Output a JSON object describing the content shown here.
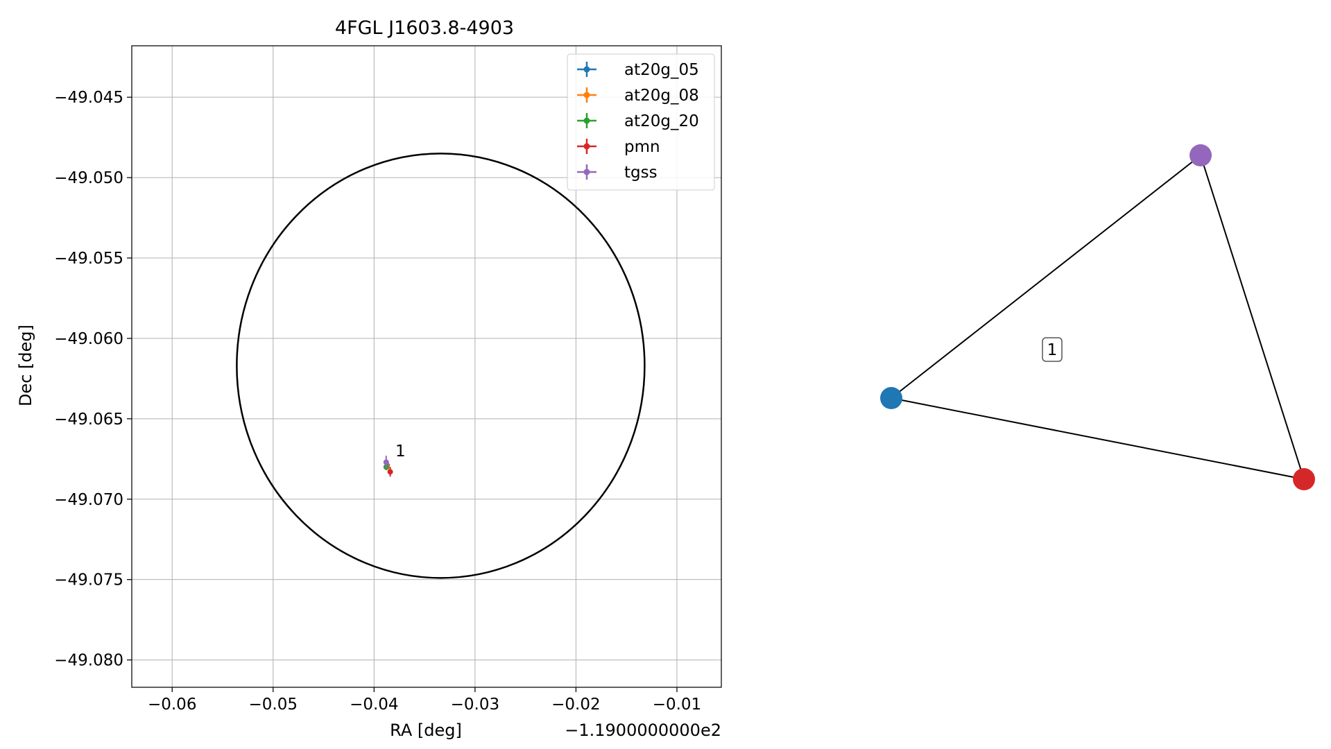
{
  "chart_data": [
    {
      "type": "scatter",
      "title": "4FGL J1603.8-4903",
      "xlabel": "RA [deg]",
      "ylabel": "Dec [deg]",
      "x_offset_label": "−1.1900000000e2",
      "xlim": [
        -0.064,
        -0.0056
      ],
      "ylim": [
        -49.0817,
        -49.0418
      ],
      "xticks": [
        -0.06,
        -0.05,
        -0.04,
        -0.03,
        -0.02,
        -0.01
      ],
      "xtick_labels": [
        "−0.06",
        "−0.05",
        "−0.04",
        "−0.03",
        "−0.02",
        "−0.01"
      ],
      "yticks": [
        -49.045,
        -49.05,
        -49.055,
        -49.06,
        -49.065,
        -49.07,
        -49.075,
        -49.08
      ],
      "ytick_labels": [
        "−49.045",
        "−49.050",
        "−49.055",
        "−49.060",
        "−49.065",
        "−49.070",
        "−49.075",
        "−49.080"
      ],
      "grid": true,
      "legend_position": "top-right",
      "ellipse": {
        "center": [
          -0.0334,
          -49.0617
        ],
        "half_width_ra": 0.0202,
        "half_height_dec": 0.0132,
        "color": "#000000"
      },
      "series": [
        {
          "name": "at20g_05",
          "color": "#1f77b4",
          "x": -0.0387,
          "y": -49.0679,
          "xerr": 0.00012,
          "yerr": 0.0001
        },
        {
          "name": "at20g_08",
          "color": "#ff7f0e",
          "x": -0.0387,
          "y": -49.068,
          "xerr": 0.00012,
          "yerr": 0.0001
        },
        {
          "name": "at20g_20",
          "color": "#2ca02c",
          "x": -0.0388,
          "y": -49.068,
          "xerr": 0.0002,
          "yerr": 0.0002
        },
        {
          "name": "pmn",
          "color": "#d62728",
          "x": -0.0384,
          "y": -49.0683,
          "xerr": 0.0002,
          "yerr": 0.0003
        },
        {
          "name": "tgss",
          "color": "#9467bd",
          "x": -0.0388,
          "y": -49.0677,
          "xerr": 0.0002,
          "yerr": 0.0004
        }
      ],
      "annotations": [
        {
          "text": "1",
          "x": -0.0381,
          "y": -49.0675
        }
      ]
    },
    {
      "type": "network",
      "nodes": [
        {
          "color": "#1f77b4"
        },
        {
          "color": "#9467bd"
        },
        {
          "color": "#d62728"
        }
      ],
      "edges": [
        [
          0,
          1
        ],
        [
          1,
          2
        ],
        [
          0,
          2
        ]
      ],
      "group_label": "1"
    }
  ]
}
